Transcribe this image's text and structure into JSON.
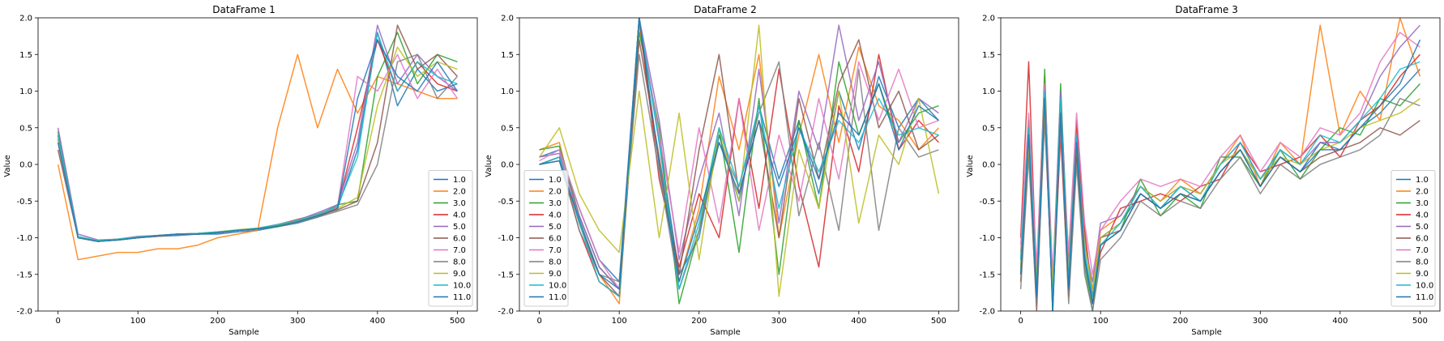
{
  "figure": {
    "panels": [
      {
        "title": "DataFrame 1",
        "xlabel": "Sample",
        "ylabel": "Value"
      },
      {
        "title": "DataFrame 2",
        "xlabel": "Sample",
        "ylabel": "Value"
      },
      {
        "title": "DataFrame 3",
        "xlabel": "Sample",
        "ylabel": "Value"
      }
    ]
  },
  "colors": [
    "#1f77b4",
    "#ff7f0e",
    "#2ca02c",
    "#d62728",
    "#9467bd",
    "#8c564b",
    "#e377c2",
    "#7f7f7f",
    "#bcbd22",
    "#17becf",
    "#1f77b4"
  ],
  "chart_data": [
    {
      "type": "line",
      "title": "DataFrame 1",
      "xlabel": "Sample",
      "ylabel": "Value",
      "xlim": [
        -25,
        525
      ],
      "ylim": [
        -2.0,
        2.0
      ],
      "xticks": [
        0,
        100,
        200,
        300,
        400,
        500
      ],
      "yticks": [
        -2.0,
        -1.5,
        -1.0,
        -0.5,
        0.0,
        0.5,
        1.0,
        1.5,
        2.0
      ],
      "legend_position": "lower-right",
      "x": [
        0,
        25,
        50,
        75,
        100,
        125,
        150,
        175,
        200,
        225,
        250,
        275,
        300,
        325,
        350,
        375,
        400,
        425,
        450,
        475,
        500
      ],
      "series": [
        {
          "name": "1.0",
          "values": [
            0.4,
            -1.0,
            -1.05,
            -1.03,
            -1.0,
            -0.98,
            -0.97,
            -0.95,
            -0.95,
            -0.92,
            -0.9,
            -0.85,
            -0.8,
            -0.72,
            -0.6,
            0.2,
            1.8,
            0.8,
            1.3,
            1.0,
            1.1
          ]
        },
        {
          "name": "2.0",
          "values": [
            0.0,
            -1.3,
            -1.25,
            -1.2,
            -1.2,
            -1.15,
            -1.15,
            -1.1,
            -1.0,
            -0.95,
            -0.9,
            0.5,
            1.5,
            0.5,
            1.3,
            0.7,
            1.2,
            1.1,
            1.0,
            0.9,
            0.9
          ]
        },
        {
          "name": "3.0",
          "values": [
            0.45,
            -1.0,
            -1.05,
            -1.03,
            -1.0,
            -0.97,
            -0.95,
            -0.95,
            -0.93,
            -0.9,
            -0.88,
            -0.85,
            -0.78,
            -0.7,
            -0.55,
            -0.5,
            1.2,
            1.8,
            1.1,
            1.5,
            1.4
          ]
        },
        {
          "name": "4.0",
          "values": [
            0.35,
            -1.0,
            -1.05,
            -1.02,
            -1.0,
            -0.97,
            -0.95,
            -0.95,
            -0.93,
            -0.9,
            -0.88,
            -0.82,
            -0.75,
            -0.68,
            -0.58,
            0.5,
            1.7,
            1.0,
            1.4,
            1.1,
            1.0
          ]
        },
        {
          "name": "5.0",
          "values": [
            0.5,
            -0.95,
            -1.03,
            -1.02,
            -0.98,
            -0.97,
            -0.95,
            -0.95,
            -0.92,
            -0.9,
            -0.87,
            -0.82,
            -0.76,
            -0.66,
            -0.55,
            0.3,
            1.9,
            1.1,
            1.5,
            1.2,
            1.0
          ]
        },
        {
          "name": "6.0",
          "values": [
            0.2,
            -1.0,
            -1.05,
            -1.03,
            -1.0,
            -0.98,
            -0.96,
            -0.95,
            -0.93,
            -0.9,
            -0.88,
            -0.83,
            -0.78,
            -0.7,
            -0.62,
            -0.5,
            0.3,
            1.9,
            1.3,
            1.5,
            1.2
          ]
        },
        {
          "name": "7.0",
          "values": [
            0.3,
            -1.0,
            -1.05,
            -1.02,
            -0.99,
            -0.97,
            -0.95,
            -0.94,
            -0.92,
            -0.9,
            -0.87,
            -0.82,
            -0.76,
            -0.68,
            -0.58,
            1.2,
            1.0,
            1.5,
            0.9,
            1.3,
            0.9
          ]
        },
        {
          "name": "8.0",
          "values": [
            0.4,
            -1.0,
            -1.05,
            -1.03,
            -1.0,
            -0.98,
            -0.96,
            -0.95,
            -0.93,
            -0.9,
            -0.88,
            -0.84,
            -0.79,
            -0.72,
            -0.64,
            -0.55,
            0.0,
            1.4,
            1.5,
            0.9,
            1.2
          ]
        },
        {
          "name": "9.0",
          "values": [
            0.35,
            -1.0,
            -1.04,
            -1.02,
            -0.99,
            -0.97,
            -0.95,
            -0.94,
            -0.92,
            -0.89,
            -0.87,
            -0.83,
            -0.77,
            -0.69,
            -0.6,
            -0.45,
            0.8,
            1.6,
            1.2,
            1.4,
            1.3
          ]
        },
        {
          "name": "10.0",
          "values": [
            0.4,
            -0.98,
            -1.04,
            -1.02,
            -0.99,
            -0.97,
            -0.95,
            -0.94,
            -0.92,
            -0.9,
            -0.87,
            -0.82,
            -0.76,
            -0.68,
            -0.57,
            0.1,
            1.8,
            1.0,
            1.4,
            1.2,
            1.1
          ]
        },
        {
          "name": "11.0",
          "values": [
            0.3,
            -1.0,
            -1.05,
            -1.03,
            -1.0,
            -0.97,
            -0.95,
            -0.95,
            -0.93,
            -0.9,
            -0.88,
            -0.84,
            -0.78,
            -0.7,
            -0.6,
            0.9,
            1.7,
            1.2,
            1.0,
            1.4,
            1.0
          ]
        }
      ]
    },
    {
      "type": "line",
      "title": "DataFrame 2",
      "xlabel": "Sample",
      "ylabel": "Value",
      "xlim": [
        -25,
        525
      ],
      "ylim": [
        -2.0,
        2.0
      ],
      "xticks": [
        0,
        100,
        200,
        300,
        400,
        500
      ],
      "yticks": [
        -2.0,
        -1.5,
        -1.0,
        -0.5,
        0.0,
        0.5,
        1.0,
        1.5,
        2.0
      ],
      "legend_position": "lower-left",
      "x": [
        0,
        25,
        50,
        75,
        100,
        125,
        150,
        175,
        200,
        225,
        250,
        275,
        300,
        325,
        350,
        375,
        400,
        425,
        450,
        475,
        500
      ],
      "series": [
        {
          "name": "1.0",
          "values": [
            0.1,
            0.2,
            -0.6,
            -1.3,
            -1.6,
            2.0,
            0.3,
            -1.5,
            -1.0,
            0.4,
            -0.5,
            0.8,
            -0.2,
            0.6,
            -0.4,
            1.0,
            0.2,
            1.2,
            0.5,
            0.9,
            0.6
          ]
        },
        {
          "name": "2.0",
          "values": [
            0.2,
            0.3,
            -0.8,
            -1.5,
            -1.9,
            1.9,
            0.0,
            -1.6,
            -0.6,
            1.2,
            0.2,
            1.5,
            -1.0,
            0.4,
            1.5,
            0.3,
            1.6,
            0.8,
            0.6,
            0.2,
            0.5
          ]
        },
        {
          "name": "3.0",
          "values": [
            0.2,
            0.25,
            -0.7,
            -1.4,
            -1.7,
            1.8,
            0.5,
            -1.9,
            -0.9,
            0.5,
            -1.2,
            0.9,
            -1.5,
            0.6,
            -0.6,
            1.4,
            0.4,
            1.1,
            0.3,
            0.7,
            0.8
          ]
        },
        {
          "name": "4.0",
          "values": [
            0.0,
            0.1,
            -0.9,
            -1.6,
            -1.8,
            2.0,
            -0.2,
            -1.4,
            -0.4,
            -1.0,
            0.9,
            -0.6,
            1.3,
            -0.3,
            -1.4,
            0.8,
            -0.1,
            1.5,
            0.2,
            0.6,
            0.3
          ]
        },
        {
          "name": "5.0",
          "values": [
            0.1,
            0.15,
            -0.7,
            -1.4,
            -1.7,
            2.0,
            0.6,
            -1.3,
            -0.2,
            0.7,
            -0.7,
            1.3,
            -0.8,
            1.0,
            0.2,
            1.9,
            0.6,
            1.4,
            0.3,
            0.9,
            0.7
          ]
        },
        {
          "name": "6.0",
          "values": [
            0.0,
            0.1,
            -0.8,
            -1.5,
            -1.8,
            1.7,
            0.1,
            -1.5,
            0.2,
            1.5,
            -0.4,
            0.6,
            -1.0,
            0.9,
            -0.2,
            1.1,
            1.7,
            0.5,
            1.0,
            0.2,
            0.4
          ]
        },
        {
          "name": "7.0",
          "values": [
            0.05,
            0.2,
            -0.6,
            -1.3,
            -1.7,
            2.0,
            0.4,
            -1.2,
            0.5,
            -0.8,
            0.9,
            -0.9,
            0.4,
            -0.5,
            0.9,
            -0.2,
            1.4,
            0.6,
            1.3,
            0.5,
            0.6
          ]
        },
        {
          "name": "8.0",
          "values": [
            0.0,
            0.05,
            -0.9,
            -1.5,
            -1.6,
            1.5,
            -0.1,
            -1.7,
            -0.9,
            0.3,
            -0.3,
            0.7,
            1.4,
            -0.7,
            0.3,
            -0.9,
            1.3,
            -0.9,
            0.5,
            0.1,
            0.2
          ]
        },
        {
          "name": "9.0",
          "values": [
            0.1,
            0.5,
            -0.4,
            -0.9,
            -1.2,
            1.0,
            -1.0,
            0.7,
            -1.3,
            0.5,
            -0.5,
            1.9,
            -1.8,
            0.2,
            -0.6,
            1.0,
            -0.8,
            0.4,
            0.0,
            0.9,
            -0.4
          ]
        },
        {
          "name": "10.0",
          "values": [
            0.0,
            0.1,
            -0.8,
            -1.6,
            -1.8,
            2.0,
            0.3,
            -1.7,
            -0.8,
            0.5,
            -0.3,
            0.8,
            -0.6,
            0.5,
            -0.1,
            0.6,
            0.3,
            0.9,
            0.4,
            0.5,
            0.4
          ]
        },
        {
          "name": "11.0",
          "values": [
            0.0,
            0.05,
            -0.75,
            -1.5,
            -1.7,
            2.0,
            0.0,
            -1.6,
            -0.7,
            0.3,
            -0.4,
            0.6,
            -0.3,
            0.5,
            -0.2,
            0.7,
            0.4,
            1.1,
            0.2,
            0.8,
            0.6
          ]
        }
      ]
    },
    {
      "type": "line",
      "title": "DataFrame 3",
      "xlabel": "Sample",
      "ylabel": "Value",
      "xlim": [
        -25,
        525
      ],
      "ylim": [
        -2.0,
        2.0
      ],
      "xticks": [
        0,
        100,
        200,
        300,
        400,
        500
      ],
      "yticks": [
        -2.0,
        -1.5,
        -1.0,
        -0.5,
        0.0,
        0.5,
        1.0,
        1.5,
        2.0
      ],
      "legend_position": "lower-right",
      "x": [
        0,
        10,
        20,
        30,
        40,
        50,
        60,
        70,
        80,
        90,
        100,
        125,
        150,
        175,
        200,
        225,
        250,
        275,
        300,
        325,
        350,
        375,
        400,
        425,
        450,
        475,
        500
      ],
      "series": [
        {
          "name": "1.0",
          "values": [
            -1.4,
            0.5,
            -1.8,
            1.0,
            -2.0,
            0.8,
            -1.5,
            0.3,
            -1.2,
            -1.9,
            -1.0,
            -0.8,
            -0.4,
            -0.6,
            -0.3,
            -0.5,
            -0.1,
            0.2,
            -0.2,
            0.1,
            -0.1,
            0.3,
            0.2,
            0.5,
            0.7,
            1.0,
            1.3
          ]
        },
        {
          "name": "2.0",
          "values": [
            -1.2,
            0.3,
            -1.5,
            1.2,
            -1.8,
            0.9,
            -1.3,
            0.5,
            -1.0,
            -1.7,
            -0.9,
            -0.7,
            -0.3,
            -0.5,
            -0.2,
            -0.4,
            0.0,
            0.4,
            -0.3,
            0.3,
            0.0,
            1.9,
            0.4,
            1.0,
            0.6,
            2.0,
            1.2
          ]
        },
        {
          "name": "3.0",
          "values": [
            -1.5,
            0.6,
            -1.9,
            1.3,
            -2.0,
            1.1,
            -1.6,
            0.2,
            -1.4,
            -2.0,
            -1.1,
            -0.9,
            -0.2,
            -0.7,
            -0.4,
            -0.6,
            0.1,
            0.1,
            -0.3,
            0.2,
            -0.2,
            0.2,
            0.5,
            0.4,
            0.9,
            0.8,
            1.1
          ]
        },
        {
          "name": "4.0",
          "values": [
            -1.0,
            1.4,
            -1.6,
            0.7,
            -1.9,
            0.4,
            -1.8,
            0.6,
            -0.9,
            -1.8,
            -1.2,
            -0.6,
            -0.5,
            -0.4,
            -0.5,
            -0.3,
            -0.2,
            0.3,
            -0.1,
            0.0,
            0.1,
            0.4,
            0.1,
            0.6,
            0.8,
            1.2,
            1.5
          ]
        },
        {
          "name": "5.0",
          "values": [
            -1.3,
            0.4,
            -1.7,
            0.9,
            -1.6,
            1.0,
            -1.4,
            0.4,
            -1.1,
            -1.6,
            -0.8,
            -0.7,
            -0.3,
            -0.5,
            -0.3,
            -0.4,
            0.0,
            0.3,
            -0.2,
            0.2,
            0.0,
            0.3,
            0.3,
            0.6,
            1.2,
            1.6,
            1.9
          ]
        },
        {
          "name": "6.0",
          "values": [
            -1.6,
            0.2,
            -2.0,
            0.8,
            -1.7,
            0.7,
            -1.7,
            0.1,
            -1.3,
            -1.9,
            -1.0,
            -0.9,
            -0.4,
            -0.6,
            -0.4,
            -0.5,
            -0.1,
            0.2,
            -0.3,
            0.1,
            -0.1,
            0.1,
            0.2,
            0.3,
            0.5,
            0.4,
            0.6
          ]
        },
        {
          "name": "7.0",
          "values": [
            -1.1,
            0.7,
            -1.4,
            1.1,
            -1.5,
            0.5,
            -1.2,
            0.7,
            -0.8,
            -1.5,
            -0.9,
            -0.5,
            -0.2,
            -0.3,
            -0.2,
            -0.3,
            0.1,
            0.4,
            -0.1,
            0.3,
            0.1,
            0.5,
            0.4,
            0.7,
            1.4,
            1.8,
            1.6
          ]
        },
        {
          "name": "8.0",
          "values": [
            -1.7,
            0.1,
            -1.9,
            0.6,
            -1.8,
            0.6,
            -1.9,
            0.0,
            -1.5,
            -2.0,
            -1.3,
            -1.0,
            -0.5,
            -0.7,
            -0.5,
            -0.6,
            -0.2,
            0.1,
            -0.4,
            0.0,
            -0.2,
            0.0,
            0.1,
            0.2,
            0.4,
            0.9,
            0.8
          ]
        },
        {
          "name": "9.0",
          "values": [
            -1.4,
            0.3,
            -1.6,
            0.8,
            -1.7,
            0.8,
            -1.5,
            0.3,
            -1.1,
            -1.7,
            -1.0,
            -0.8,
            -0.3,
            -0.5,
            -0.3,
            -0.4,
            0.0,
            0.2,
            -0.2,
            0.1,
            0.0,
            0.2,
            0.3,
            0.5,
            0.6,
            0.7,
            0.9
          ]
        },
        {
          "name": "10.0",
          "values": [
            -1.3,
            0.5,
            -1.7,
            1.0,
            -1.9,
            0.9,
            -1.6,
            0.4,
            -1.2,
            -1.8,
            -1.1,
            -0.8,
            -0.3,
            -0.6,
            -0.3,
            -0.5,
            0.0,
            0.3,
            -0.2,
            0.2,
            0.0,
            0.4,
            0.3,
            0.6,
            0.9,
            1.3,
            1.4
          ]
        },
        {
          "name": "11.0",
          "values": [
            -1.5,
            0.4,
            -1.8,
            0.9,
            -2.0,
            0.7,
            -1.7,
            0.3,
            -1.3,
            -1.9,
            -1.1,
            -0.9,
            -0.4,
            -0.6,
            -0.4,
            -0.5,
            -0.1,
            0.2,
            -0.3,
            0.1,
            -0.1,
            0.2,
            0.2,
            0.5,
            0.8,
            1.1,
            1.7
          ]
        }
      ]
    }
  ]
}
